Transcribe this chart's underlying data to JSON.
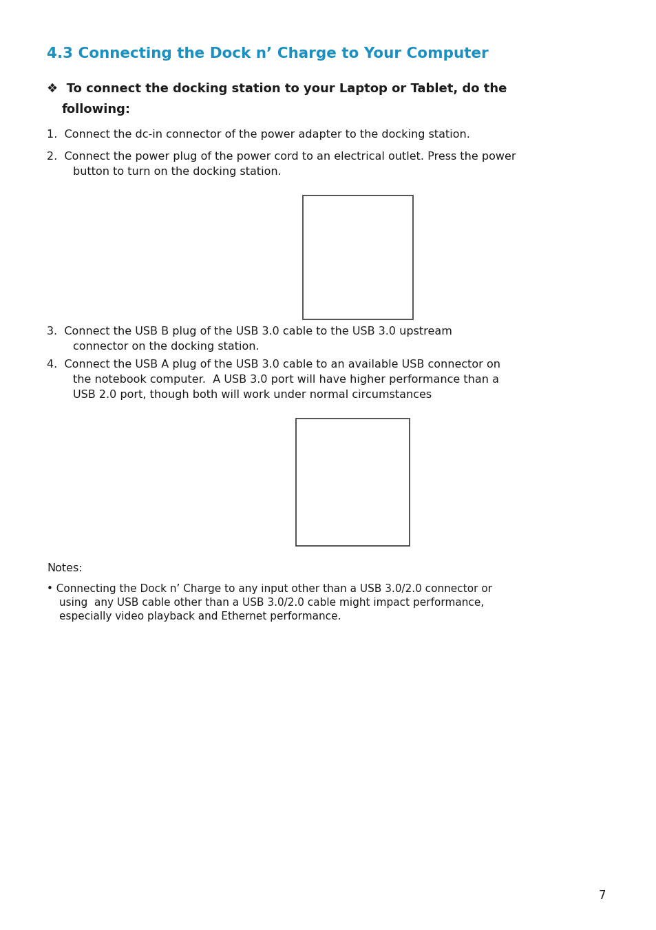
{
  "bg_color": "#ffffff",
  "title": "4.3 Connecting the Dock n’ Charge to Your Computer",
  "title_color": "#1a8fc1",
  "title_fontsize": 15.5,
  "subtitle_line1": "❖  To connect the docking station to your Laptop or Tablet, do the",
  "subtitle_line2": "following:",
  "subtitle_fontsize": 13.0,
  "body_fontsize": 11.5,
  "body_color": "#1a1a1a",
  "item1": "1.  Connect the dc-in connector of the power adapter to the docking station.",
  "item2a": "2.  Connect the power plug of the power cord to an electrical outlet. Press the power",
  "item2b": "button to turn on the docking station.",
  "item3a": "3.  Connect the USB B plug of the USB 3.0 cable to the USB 3.0 upstream",
  "item3b": "connector on the docking station.",
  "item4a": "4.  Connect the USB A plug of the USB 3.0 cable to an available USB connector on",
  "item4b": "the notebook computer.  A USB 3.0 port will have higher performance than a",
  "item4c": "USB 2.0 port, though both will work under normal circumstances",
  "notes_header": "Notes:",
  "notes_line1": "• Connecting the Dock n’ Charge to any input other than a USB 3.0/2.0 connector or",
  "notes_line2": "using  any USB cable other than a USB 3.0/2.0 cable might impact performance,",
  "notes_line3": "especially video playback and Ethernet performance.",
  "page_number": "7",
  "img1_border_color": "#333333",
  "img2_border_color": "#333333"
}
